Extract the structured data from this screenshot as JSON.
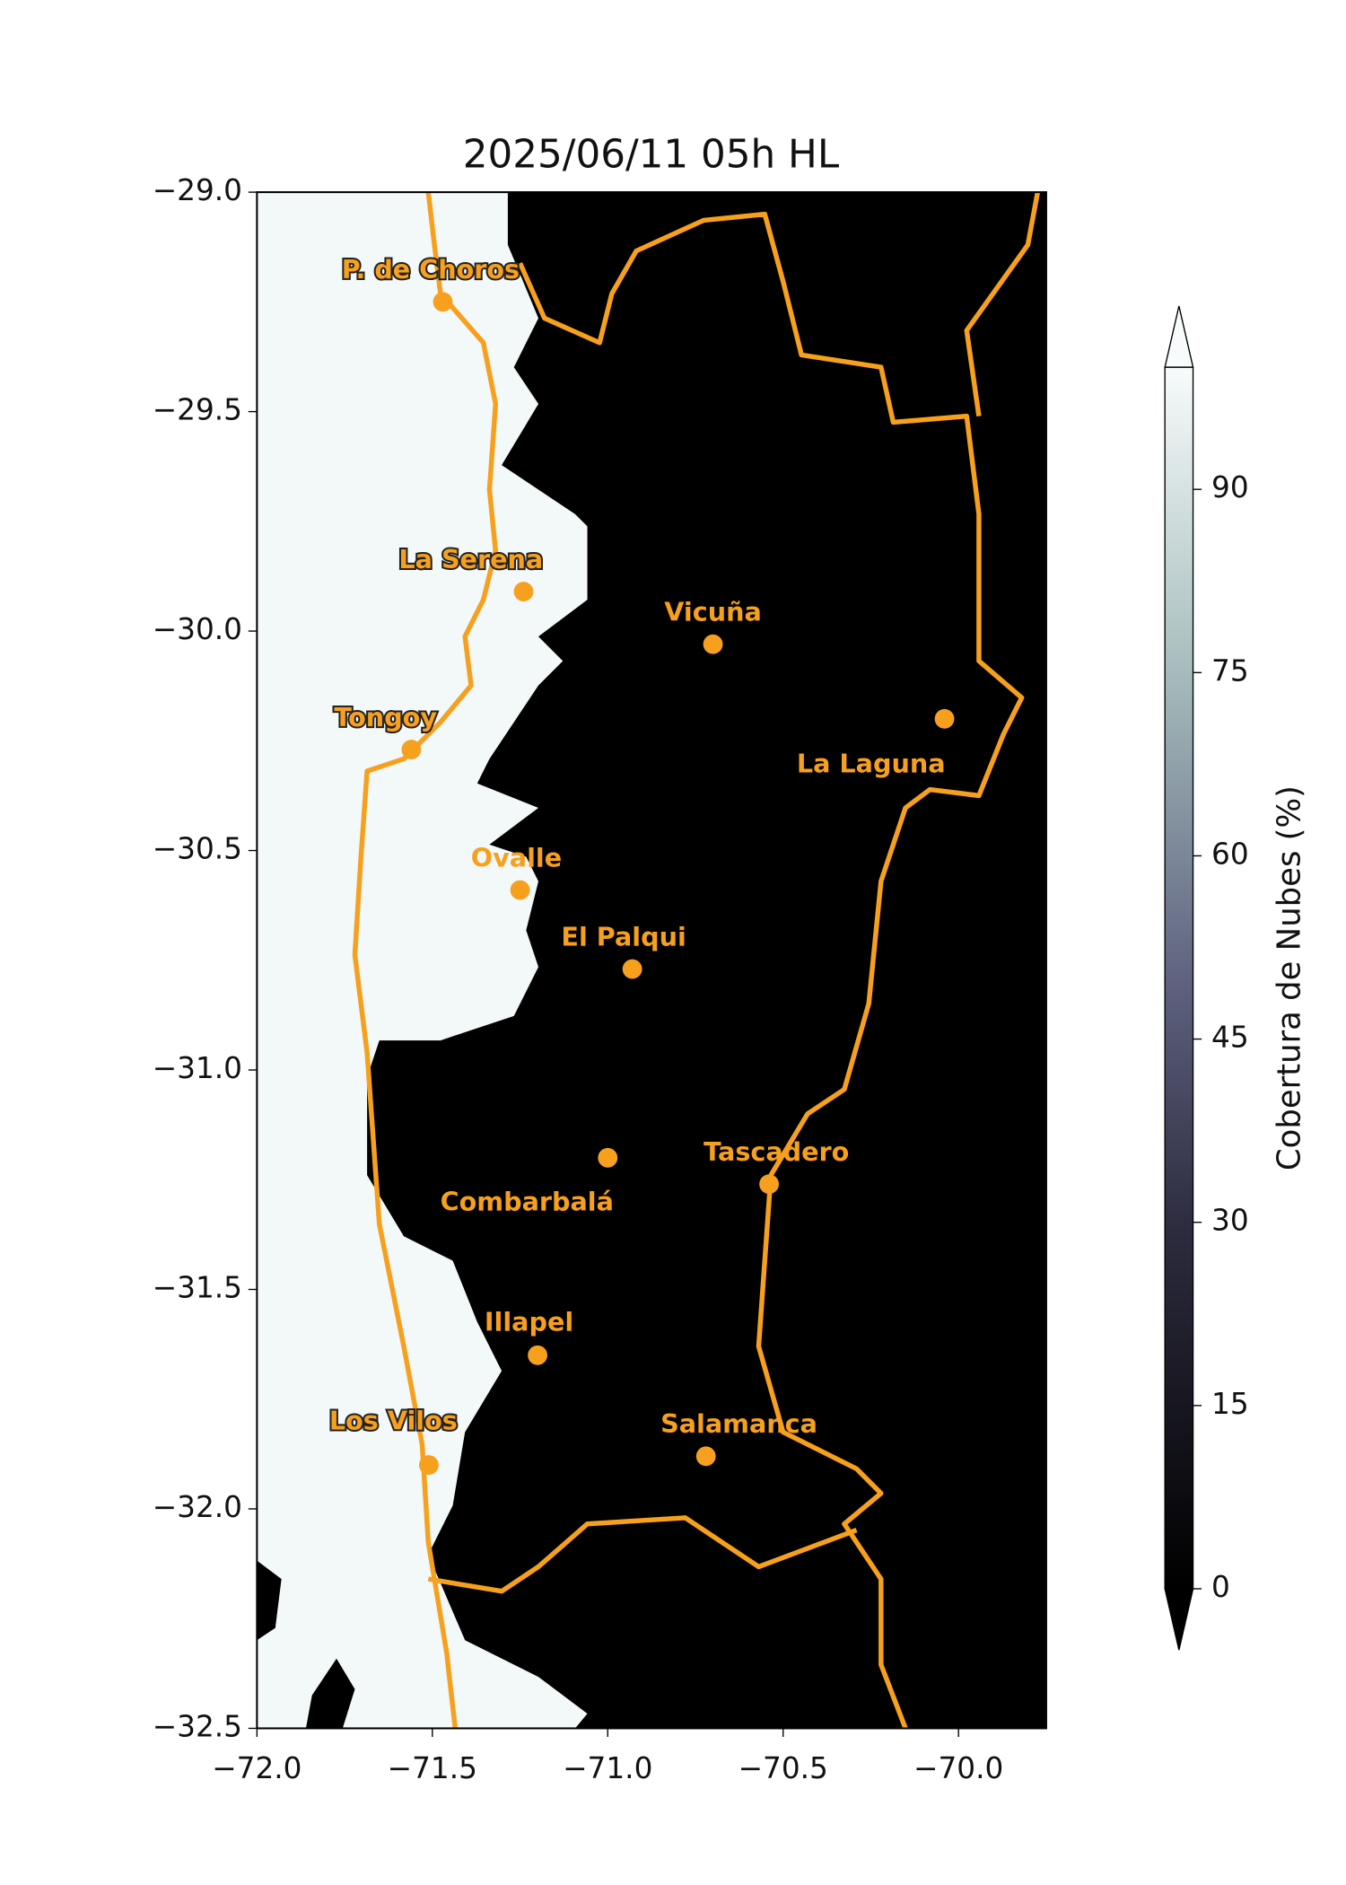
{
  "title": "2025/06/11 05h HL",
  "xlim": [
    -72.0,
    -69.75
  ],
  "ylim": [
    -32.5,
    -29.0
  ],
  "xticks": [
    {
      "value": -72.0,
      "label": "−72.0"
    },
    {
      "value": -71.5,
      "label": "−71.5"
    },
    {
      "value": -71.0,
      "label": "−71.0"
    },
    {
      "value": -70.5,
      "label": "−70.5"
    },
    {
      "value": -70.0,
      "label": "−70.0"
    }
  ],
  "yticks": [
    {
      "value": -29.0,
      "label": "−29.0"
    },
    {
      "value": -29.5,
      "label": "−29.5"
    },
    {
      "value": -30.0,
      "label": "−30.0"
    },
    {
      "value": -30.5,
      "label": "−30.5"
    },
    {
      "value": -31.0,
      "label": "−31.0"
    },
    {
      "value": -31.5,
      "label": "−31.5"
    },
    {
      "value": -32.0,
      "label": "−32.0"
    },
    {
      "value": -32.5,
      "label": "−32.5"
    }
  ],
  "colorbar": {
    "label": "Cobertura de Nubes (%)",
    "lim": [
      0,
      100
    ],
    "ticks": [
      0,
      15,
      30,
      45,
      60,
      75,
      90
    ]
  },
  "cities": [
    {
      "name": "P. de Choros",
      "lon": -71.47,
      "lat": -29.25
    },
    {
      "name": "La Serena",
      "lon": -71.24,
      "lat": -29.91
    },
    {
      "name": "Vicuña",
      "lon": -70.7,
      "lat": -30.03
    },
    {
      "name": "La Laguna",
      "lon": -70.04,
      "lat": -30.2
    },
    {
      "name": "Tongoy",
      "lon": -71.56,
      "lat": -30.27
    },
    {
      "name": "Ovalle",
      "lon": -71.25,
      "lat": -30.59
    },
    {
      "name": "El Palqui",
      "lon": -70.93,
      "lat": -30.77
    },
    {
      "name": "Combarbalá",
      "lon": -71.0,
      "lat": -31.2
    },
    {
      "name": "Tascadero",
      "lon": -70.54,
      "lat": -31.26
    },
    {
      "name": "Illapel",
      "lon": -71.2,
      "lat": -31.65
    },
    {
      "name": "Salamanca",
      "lon": -70.72,
      "lat": -31.88
    },
    {
      "name": "Los Vilos",
      "lon": -71.51,
      "lat": -31.9
    }
  ]
}
